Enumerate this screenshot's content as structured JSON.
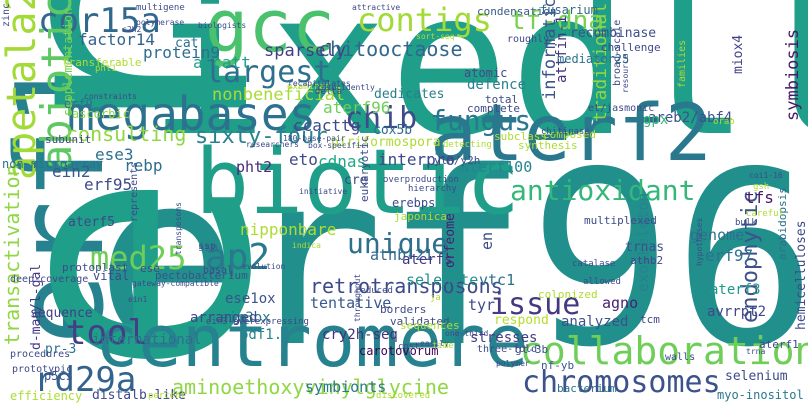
{
  "words": [
    {
      "text": "ixedll",
      "color": "#1f9e89"
    },
    {
      "text": "erf96",
      "color": "#21908d"
    },
    {
      "text": "erf1",
      "color": "#26828e"
    },
    {
      "text": "ert",
      "color": "#1f9e89"
    },
    {
      "text": "biotic",
      "color": "#1f9e89"
    },
    {
      "text": "centromere",
      "color": "#26828e"
    },
    {
      "text": "aterf2",
      "color": "#2a788e"
    },
    {
      "text": "gcc",
      "color": "#4ac16d"
    },
    {
      "text": "megabases",
      "color": "#2c728e"
    },
    {
      "text": "contigs",
      "color": "#a2da37"
    },
    {
      "text": "cor15a",
      "color": "#31688e"
    },
    {
      "text": "collaboration",
      "color": "#6ece58"
    },
    {
      "text": "erf",
      "color": "#440154"
    },
    {
      "text": "chromosomes",
      "color": "#3b528b"
    },
    {
      "text": "apetala2",
      "color": "#a2da37"
    },
    {
      "text": "abiotic",
      "color": "#5ec962"
    },
    {
      "text": "largest",
      "color": "#2e6f8e"
    },
    {
      "text": "tf-dna",
      "color": "#7ad151"
    },
    {
      "text": "antioxidant",
      "color": "#35b779"
    },
    {
      "text": "fungus",
      "color": "#2a788e"
    },
    {
      "text": "chib",
      "color": "#3e4a89"
    },
    {
      "text": "unique",
      "color": "#2e6e8e"
    },
    {
      "text": "tool",
      "color": "#433e85"
    },
    {
      "text": "issue",
      "color": "#443a83"
    },
    {
      "text": "rd29a",
      "color": "#33638d"
    },
    {
      "text": "ap2",
      "color": "#2a788e"
    },
    {
      "text": "med25",
      "color": "#6ece58"
    },
    {
      "text": "consulting",
      "color": "#8fd744"
    },
    {
      "text": "sixty-four",
      "color": "#26828e"
    },
    {
      "text": "chitooctaose",
      "color": "#31688e"
    },
    {
      "text": "aminoethoxyvinylglycine",
      "color": "#8fd744"
    },
    {
      "text": "endophytic",
      "color": "#3b528b"
    },
    {
      "text": "retrotransposons",
      "color": "#3e4989"
    },
    {
      "text": "transactivation",
      "color": "#8fd744"
    },
    {
      "text": "factor14",
      "color": "#33638d"
    },
    {
      "text": "protein9",
      "color": "#2e6e8e"
    },
    {
      "text": "atcatt",
      "color": "#1f9e89"
    },
    {
      "text": "sparsely",
      "color": "#424086"
    },
    {
      "text": "ein2",
      "color": "#38598c"
    },
    {
      "text": "pht2",
      "color": "#482878"
    },
    {
      "text": "eto",
      "color": "#3e4a89"
    },
    {
      "text": "cdnas",
      "color": "#22a884"
    },
    {
      "text": "interpro",
      "color": "#3e4989"
    },
    {
      "text": "ese3",
      "color": "#2d708e"
    },
    {
      "text": "rebp",
      "color": "#2e6f8e"
    },
    {
      "text": "erf95",
      "color": "#3e4a89"
    },
    {
      "text": "aterf96",
      "color": "#6ece58"
    },
    {
      "text": "ccacttg",
      "color": "#3e4989"
    },
    {
      "text": "nonbeneficial",
      "color": "#a8db34"
    },
    {
      "text": "dedicates",
      "color": "#277f8e"
    },
    {
      "text": "defence",
      "color": "#26828e"
    },
    {
      "text": "informatics",
      "color": "#3b528b"
    },
    {
      "text": "traditional",
      "color": "#8fd744"
    },
    {
      "text": "symbiosis",
      "color": "#48186a"
    },
    {
      "text": "areb2/abf4",
      "color": "#3b528b"
    },
    {
      "text": "gpx",
      "color": "#35b779"
    },
    {
      "text": "miox4",
      "color": "#424086"
    },
    {
      "text": "attfin-1",
      "color": "#46327e"
    },
    {
      "text": "cox5b",
      "color": "#2e6e8e"
    },
    {
      "text": "piriformospora",
      "color": "#addc30"
    },
    {
      "text": "nipponbare",
      "color": "#addc30"
    },
    {
      "text": "athb-21",
      "color": "#31688e"
    },
    {
      "text": "aterf100",
      "color": "#25848e"
    },
    {
      "text": "tfs",
      "color": "#481769"
    },
    {
      "text": "en",
      "color": "#3e4989"
    },
    {
      "text": "erf97",
      "color": "#2c728e"
    },
    {
      "text": "genome",
      "color": "#2d708e"
    },
    {
      "text": "exoskeleton",
      "color": "#26828e"
    },
    {
      "text": "agno",
      "color": "#482173"
    },
    {
      "text": "avrrpt2",
      "color": "#3f4889"
    },
    {
      "text": "aterf3",
      "color": "#1f9a8a"
    },
    {
      "text": "vtc1",
      "color": "#2c728e"
    },
    {
      "text": "tyr",
      "color": "#3e4a89"
    },
    {
      "text": "selenite",
      "color": "#21918c"
    },
    {
      "text": "aterfs",
      "color": "#453882"
    },
    {
      "text": "ese1ox",
      "color": "#3b528b"
    },
    {
      "text": "ein3ox",
      "color": "#2a788e"
    },
    {
      "text": "pdf1.2",
      "color": "#25848e"
    },
    {
      "text": "cry2h-seq",
      "color": "#46307e"
    },
    {
      "text": "analyzed",
      "color": "#3b528b"
    },
    {
      "text": "respond",
      "color": "#b5de2b"
    },
    {
      "text": "tentative",
      "color": "#38598c"
    },
    {
      "text": "arranged",
      "color": "#3e4989"
    },
    {
      "text": "international",
      "color": "#2e6f8e"
    },
    {
      "text": "sequence",
      "color": "#433e85"
    },
    {
      "text": "pr-3",
      "color": "#2c728e"
    },
    {
      "text": "efficiency",
      "color": "#addc30"
    },
    {
      "text": "distalb-like",
      "color": "#3e4989"
    },
    {
      "text": "symbionts",
      "color": "#2a788e"
    },
    {
      "text": "stresses",
      "color": "#433e85"
    },
    {
      "text": "carotovorum",
      "color": "#440154"
    },
    {
      "text": "selenium",
      "color": "#3e4a89"
    },
    {
      "text": "bacterium",
      "color": "#2e6e8e"
    },
    {
      "text": "myo-inositol",
      "color": "#2a788e"
    },
    {
      "text": "gt-3b",
      "color": "#3b528b"
    },
    {
      "text": "nf-yb",
      "color": "#38598c"
    },
    {
      "text": "d-man/l-gal",
      "color": "#443983"
    },
    {
      "text": "p5cs",
      "color": "#3b528b"
    },
    {
      "text": "non-microarray",
      "color": "#2c728e"
    },
    {
      "text": "supplementation",
      "color": "#7ad151"
    },
    {
      "text": "ascorbic",
      "color": "#8fd744"
    },
    {
      "text": "aterf5",
      "color": "#3e4a89"
    },
    {
      "text": "erf9",
      "color": "#2c728e"
    },
    {
      "text": "subunit",
      "color": "#3f4889"
    },
    {
      "text": "transferable",
      "color": "#addc30"
    },
    {
      "text": "recombinase",
      "color": "#3b528b"
    },
    {
      "text": "condensation",
      "color": "#38598c"
    },
    {
      "text": "fusarium",
      "color": "#31688e"
    },
    {
      "text": "mediator25",
      "color": "#2c728e"
    },
    {
      "text": "atomic",
      "color": "#3e4a89"
    },
    {
      "text": "cat",
      "color": "#2c728e"
    },
    {
      "text": "hemicelluloses",
      "color": "#3e4a89"
    },
    {
      "text": "arabidopsis",
      "color": "#2d708e"
    },
    {
      "text": "ssp",
      "color": "#2e6e8e"
    },
    {
      "text": "protoplast",
      "color": "#3e4a89"
    },
    {
      "text": "vital",
      "color": "#3e4a89"
    },
    {
      "text": "orfeome",
      "color": "#481f70"
    },
    {
      "text": "pectobacterium",
      "color": "#3b528b"
    },
    {
      "text": "trnas",
      "color": "#3b528b"
    },
    {
      "text": "athb2",
      "color": "#3e4989"
    },
    {
      "text": "multiplexed",
      "color": "#3e4a89"
    },
    {
      "text": "ylh/y2h",
      "color": "#3e4a89"
    },
    {
      "text": "total",
      "color": "#3e4a89"
    },
    {
      "text": "complete",
      "color": "#3e4a89"
    },
    {
      "text": "subclass",
      "color": "#addc30"
    },
    {
      "text": "composed",
      "color": "#addc30"
    },
    {
      "text": "synthesis",
      "color": "#addc30"
    },
    {
      "text": "cre",
      "color": "#3e4a89"
    },
    {
      "text": "erebps",
      "color": "#3e4a89"
    },
    {
      "text": "japonica",
      "color": "#addc30"
    },
    {
      "text": "colonized",
      "color": "#addc30"
    },
    {
      "text": "tcm",
      "color": "#3e4a89"
    },
    {
      "text": "aterf1",
      "color": "#3e4a89"
    },
    {
      "text": "walls",
      "color": "#3e4a89"
    },
    {
      "text": "three-fold",
      "color": "#3e4a89"
    },
    {
      "text": "validated",
      "color": "#3e4a89"
    },
    {
      "text": "borders",
      "color": "#3e4a89"
    },
    {
      "text": "sequences",
      "color": "#addc30"
    },
    {
      "text": "ssp",
      "color": "#3e4a89"
    },
    {
      "text": "basal",
      "color": "#3e4a89"
    },
    {
      "text": "ese",
      "color": "#3e4a89"
    },
    {
      "text": "deep-coverage",
      "color": "#3e4a89"
    },
    {
      "text": "procedures",
      "color": "#3e4a89"
    },
    {
      "text": "prototypic",
      "color": "#3e4a89"
    },
    {
      "text": "zinc",
      "color": "#3e4a89"
    },
    {
      "text": "multigene",
      "color": "#3e4a89"
    },
    {
      "text": "polymerase",
      "color": "#3e4a89"
    },
    {
      "text": "c2h2",
      "color": "#3e4a89"
    },
    {
      "text": "roughly",
      "color": "#3e4a89"
    },
    {
      "text": "challenge",
      "color": "#3e4a89"
    },
    {
      "text": "broad-scale",
      "color": "#3e4a89"
    },
    {
      "text": "families",
      "color": "#addc30"
    },
    {
      "text": "et/jasmonic",
      "color": "#3e4a89"
    },
    {
      "text": "resource",
      "color": "#3e4a89"
    },
    {
      "text": "chitinase",
      "color": "#3e4a89"
    },
    {
      "text": "examined",
      "color": "#addc30"
    },
    {
      "text": "delta",
      "color": "#3e4a89"
    },
    {
      "text": "researchers",
      "color": "#3e4a89"
    },
    {
      "text": "180-base-pair",
      "color": "#3e4a89"
    },
    {
      "text": "box-specific",
      "color": "#3e4a89"
    },
    {
      "text": "detecting",
      "color": "#addc30"
    },
    {
      "text": "hierarchy",
      "color": "#3e4a89"
    },
    {
      "text": "overproduction",
      "color": "#3e4a89"
    },
    {
      "text": "initiative",
      "color": "#3e4a89"
    },
    {
      "text": "eukaryotic",
      "color": "#3e4a89"
    },
    {
      "text": "catalase",
      "color": "#3e4a89"
    },
    {
      "text": "allowed",
      "color": "#3e4a89"
    },
    {
      "text": "hypotheses",
      "color": "#3e4a89"
    },
    {
      "text": "careful",
      "color": "#addc30"
    },
    {
      "text": "bulk",
      "color": "#3e4a89"
    },
    {
      "text": "gsh",
      "color": "#addc30"
    },
    {
      "text": "coi1-16",
      "color": "#3e4a89"
    },
    {
      "text": "gateway-compatible",
      "color": "#3e4a89"
    },
    {
      "text": "evolution",
      "color": "#3e4a89"
    },
    {
      "text": "ein3-overexpressing",
      "color": "#3e4a89"
    },
    {
      "text": "throughput",
      "color": "#3e4a89"
    },
    {
      "text": "recapitulates",
      "color": "#3e4a89"
    },
    {
      "text": "coincidently",
      "color": "#3e4a89"
    },
    {
      "text": "attractive",
      "color": "#3e4a89"
    },
    {
      "text": "constraints",
      "color": "#3e4a89"
    },
    {
      "text": "represents",
      "color": "#3e4a89"
    },
    {
      "text": "transposons",
      "color": "#3e4a89"
    },
    {
      "text": "reduced",
      "color": "#3e4a89"
    },
    {
      "text": "biologists",
      "color": "#3e4a89"
    },
    {
      "text": "percent",
      "color": "#addc30"
    },
    {
      "text": "discovered",
      "color": "#addc30"
    },
    {
      "text": "cost",
      "color": "#3e4a89"
    },
    {
      "text": "easily",
      "color": "#3e4a89"
    },
    {
      "text": "one-third",
      "color": "#3e4a89"
    },
    {
      "text": "pht1",
      "color": "#addc30"
    },
    {
      "text": "indica",
      "color": "#addc30"
    },
    {
      "text": "ein1",
      "color": "#3e4a89"
    },
    {
      "text": "trna",
      "color": "#3e4a89"
    },
    {
      "text": "polymer",
      "color": "#3e4a89"
    },
    {
      "text": "orab",
      "color": "#addc30"
    },
    {
      "text": "ja",
      "color": "#addc30"
    },
    {
      "text": "sort-seq",
      "color": "#addc30"
    },
    {
      "text": "time",
      "color": "#addc30"
    }
  ]
}
